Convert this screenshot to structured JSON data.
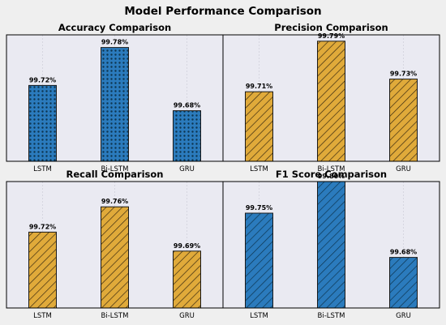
{
  "figure": {
    "title": "Model Performance Comparison"
  },
  "colors": {
    "figure_bg": "#efefef",
    "panel_bg": "#eaeaf2",
    "blue": "#2b7bbd",
    "gold": "#e0aa3a",
    "edge": "#1a1a1a",
    "grid": "#c8c8d4"
  },
  "chart_data": [
    {
      "type": "bar",
      "title": "Accuracy Comparison",
      "categories": [
        "LSTM",
        "Bi-LSTM",
        "GRU"
      ],
      "values": [
        99.72,
        99.78,
        99.68
      ],
      "labels": [
        "99.72%",
        "99.78%",
        "99.68%"
      ],
      "ylim": [
        99.6,
        99.8
      ],
      "color": "blue",
      "hatch": "dots",
      "grid": "x"
    },
    {
      "type": "bar",
      "title": "Precision Comparison",
      "categories": [
        "LSTM",
        "Bi-LSTM",
        "GRU"
      ],
      "values": [
        99.71,
        99.79,
        99.73
      ],
      "labels": [
        "99.71%",
        "99.79%",
        "99.73%"
      ],
      "ylim": [
        99.6,
        99.8
      ],
      "color": "gold",
      "hatch": "diagonal",
      "grid": "x"
    },
    {
      "type": "bar",
      "title": "Recall Comparison",
      "categories": [
        "LSTM",
        "Bi-LSTM",
        "GRU"
      ],
      "values": [
        99.72,
        99.76,
        99.69
      ],
      "labels": [
        "99.72%",
        "99.76%",
        "99.69%"
      ],
      "ylim": [
        99.6,
        99.8
      ],
      "color": "gold",
      "hatch": "diagonal",
      "grid": "x"
    },
    {
      "type": "bar",
      "title": "F1 Score Comparison",
      "categories": [
        "LSTM",
        "Bi-LSTM",
        "GRU"
      ],
      "values": [
        99.75,
        99.8,
        99.68
      ],
      "labels": [
        "99.75%",
        "99.80%",
        "99.68%"
      ],
      "ylim": [
        99.6,
        99.8
      ],
      "color": "blue",
      "hatch": "diagonal",
      "grid": "x"
    }
  ]
}
